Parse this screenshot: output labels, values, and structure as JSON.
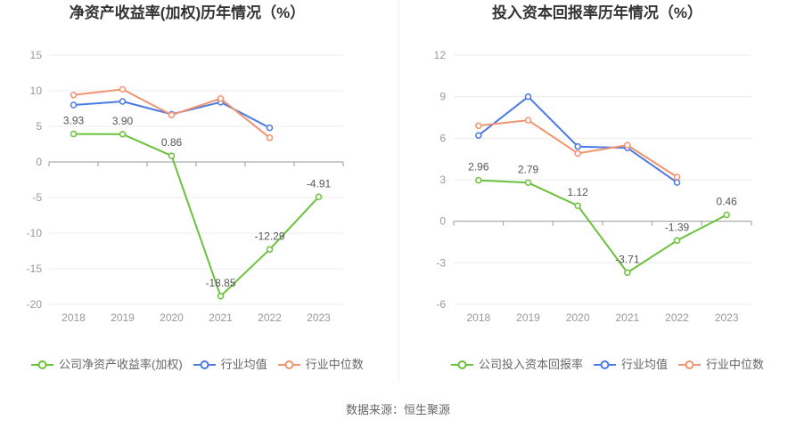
{
  "chart_data": [
    {
      "type": "line",
      "title": "净资产收益率(加权)历年情况（%）",
      "categories": [
        "2018",
        "2019",
        "2020",
        "2021",
        "2022",
        "2023"
      ],
      "ylim": [
        -20,
        15
      ],
      "yticks": [
        15,
        10,
        5,
        0,
        -5,
        -10,
        -15,
        -20
      ],
      "grid": true,
      "legend": "bottom",
      "series": [
        {
          "name": "公司净资产收益率(加权)",
          "color": "#6cc13c",
          "values": [
            3.93,
            3.9,
            0.86,
            -18.85,
            -12.29,
            -4.91
          ],
          "labels": [
            "3.93",
            "3.90",
            "0.86",
            "-18.85",
            "-12.29",
            "-4.91"
          ]
        },
        {
          "name": "行业均值",
          "color": "#4a7ae2",
          "values": [
            8.0,
            8.5,
            6.7,
            8.4,
            4.8,
            null
          ]
        },
        {
          "name": "行业中位数",
          "color": "#f29370",
          "values": [
            9.4,
            10.2,
            6.6,
            8.9,
            3.4,
            null
          ]
        }
      ]
    },
    {
      "type": "line",
      "title": "投入资本回报率历年情况（%）",
      "categories": [
        "2018",
        "2019",
        "2020",
        "2021",
        "2022",
        "2023"
      ],
      "ylim": [
        -6,
        12
      ],
      "yticks": [
        12,
        9,
        6,
        3,
        0,
        -3,
        -6
      ],
      "grid": true,
      "legend": "bottom",
      "series": [
        {
          "name": "公司投入资本回报率",
          "color": "#6cc13c",
          "values": [
            2.96,
            2.79,
            1.12,
            -3.71,
            -1.39,
            0.46
          ],
          "labels": [
            "2.96",
            "2.79",
            "1.12",
            "-3.71",
            "-1.39",
            "0.46"
          ]
        },
        {
          "name": "行业均值",
          "color": "#4a7ae2",
          "values": [
            6.2,
            9.0,
            5.4,
            5.3,
            2.8,
            null
          ]
        },
        {
          "name": "行业中位数",
          "color": "#f29370",
          "values": [
            6.9,
            7.3,
            4.9,
            5.5,
            3.2,
            null
          ]
        }
      ]
    }
  ],
  "source": "数据来源：恒生聚源"
}
